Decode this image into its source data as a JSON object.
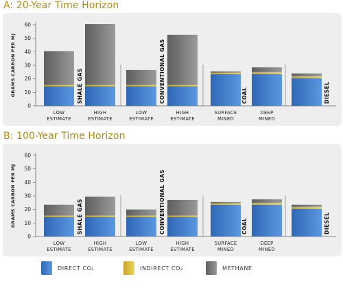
{
  "colors": {
    "direct": "#3f7fcf",
    "indirect": "#e2c33a",
    "methane": "#7a7a7a",
    "title": "#b08a16",
    "panel": "#eeeeee"
  },
  "legend": [
    {
      "key": "direct",
      "label": "DIRECT CO₂",
      "color": "#3f7fcf"
    },
    {
      "key": "indirect",
      "label": "INDIRECT CO₂",
      "color": "#e2c33a"
    },
    {
      "key": "methane",
      "label": "METHANE",
      "color": "#7a7a7a"
    }
  ],
  "chart_data": [
    {
      "type": "bar",
      "stacked": true,
      "title": "A: 20-Year Time Horizon",
      "ylabel": "GRAMS CARBON PER MJ",
      "ylim": [
        0,
        60
      ],
      "yticks": [
        0,
        10,
        20,
        30,
        40,
        50,
        60
      ],
      "groups": [
        {
          "label": "SHALE GAS",
          "categories": [
            "LOW\nESTIMATE",
            "HIGH\nESTIMATE"
          ]
        },
        {
          "label": "CONVENTIONAL GAS",
          "categories": [
            "LOW\nESTIMATE",
            "HIGH\nESTIMATE"
          ]
        },
        {
          "label": "COAL",
          "categories": [
            "SURFACE\nMINED",
            "DEEP\nMINED"
          ]
        },
        {
          "label": "DIESEL",
          "categories": [
            ""
          ]
        }
      ],
      "series": [
        {
          "name": "DIRECT CO₂",
          "values": [
            14.5,
            14.5,
            14.5,
            14.5,
            23.5,
            23.5,
            20.5
          ]
        },
        {
          "name": "INDIRECT CO₂",
          "values": [
            1,
            1,
            1,
            1,
            1,
            1.5,
            1.5
          ]
        },
        {
          "name": "METHANE",
          "values": [
            25,
            45,
            11,
            37,
            1,
            3.5,
            2
          ]
        }
      ]
    },
    {
      "type": "bar",
      "stacked": true,
      "title": "B: 100-Year Time Horizon",
      "ylabel": "GRAMS CARBON PER MJ",
      "ylim": [
        0,
        60
      ],
      "yticks": [
        0,
        10,
        20,
        30,
        40,
        50,
        60
      ],
      "groups": [
        {
          "label": "SHALE GAS",
          "categories": [
            "LOW\nESTIMATE",
            "HIGH\nESTIMATE"
          ]
        },
        {
          "label": "CONVENTIONAL GAS",
          "categories": [
            "LOW\nESTIMATE",
            "HIGH\nESTIMATE"
          ]
        },
        {
          "label": "COAL",
          "categories": [
            "SURFACE\nMINED",
            "DEEP\nMINED"
          ]
        },
        {
          "label": "DIESEL",
          "categories": [
            ""
          ]
        }
      ],
      "series": [
        {
          "name": "DIRECT CO₂",
          "values": [
            14.5,
            14.5,
            14.5,
            14.5,
            23.5,
            23.5,
            20.5
          ]
        },
        {
          "name": "INDIRECT CO₂",
          "values": [
            1,
            1,
            1,
            1,
            1,
            1.5,
            1.5
          ]
        },
        {
          "name": "METHANE",
          "values": [
            8,
            14,
            4.5,
            11.5,
            1,
            2.5,
            1.5
          ]
        }
      ]
    }
  ]
}
